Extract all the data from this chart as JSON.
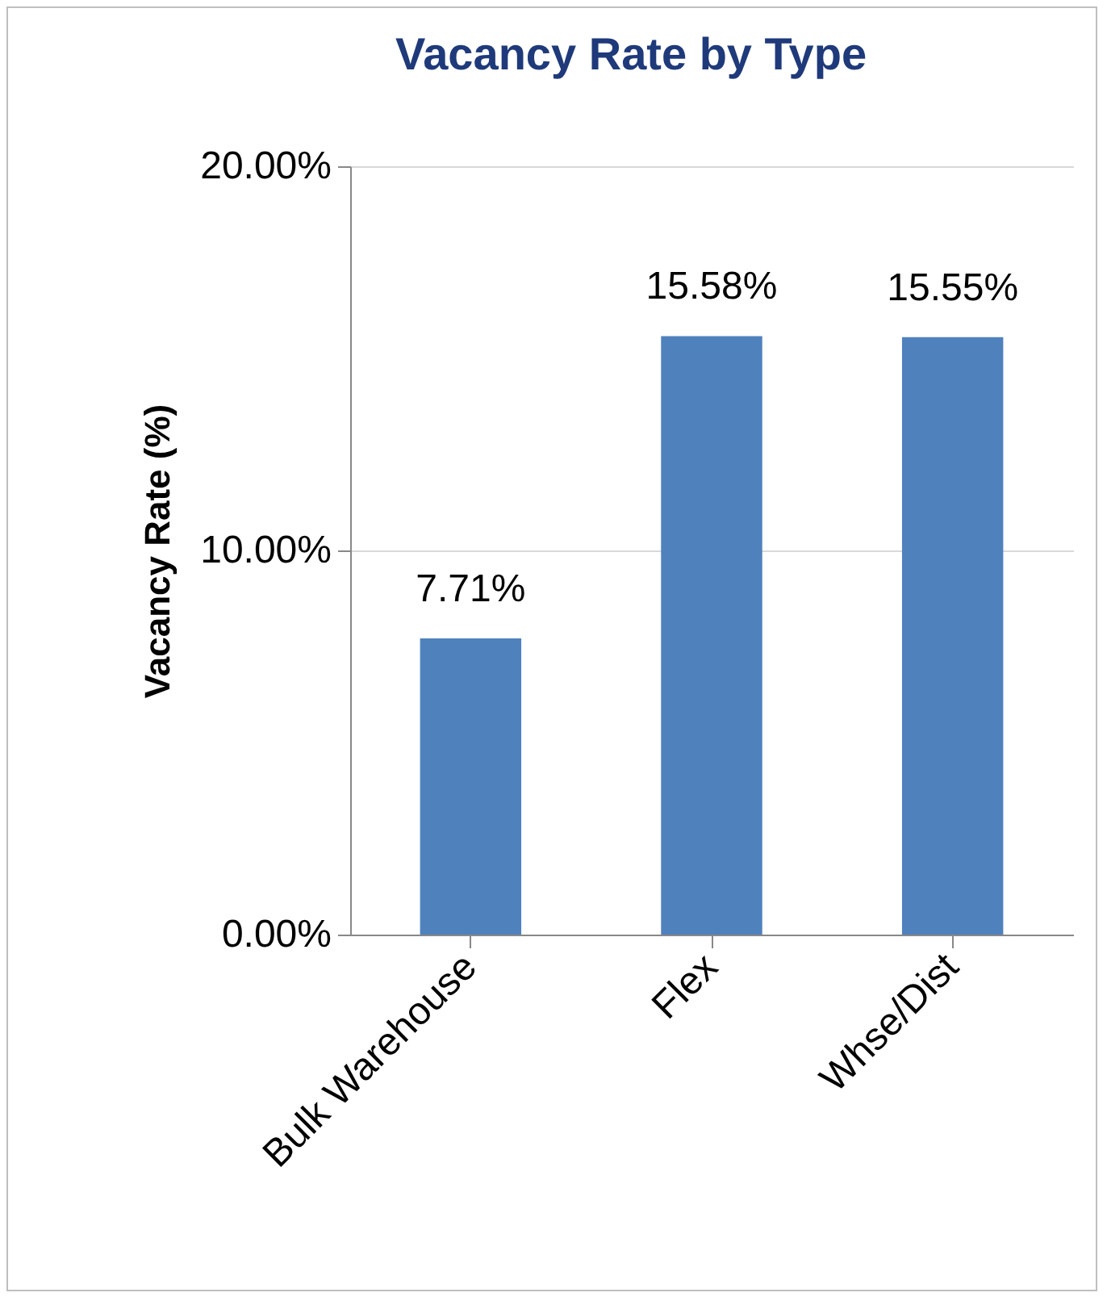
{
  "chart_data": {
    "type": "bar",
    "title": "Vacancy Rate by Type",
    "ylabel": "Vacancy Rate (%)",
    "categories": [
      "Bulk Warehouse",
      "Flex",
      "Whse/Dist"
    ],
    "values": [
      7.71,
      15.58,
      15.55
    ],
    "color": "#4f81bd",
    "value_labels": [
      "7.71%",
      "15.58%",
      "15.55%"
    ],
    "ylim": [
      0,
      20
    ],
    "yticks": [
      {
        "value": 0,
        "label": "0.00%"
      },
      {
        "value": 10,
        "label": "10.00%"
      },
      {
        "value": 20,
        "label": "20.00%"
      }
    ],
    "grid": "y"
  }
}
